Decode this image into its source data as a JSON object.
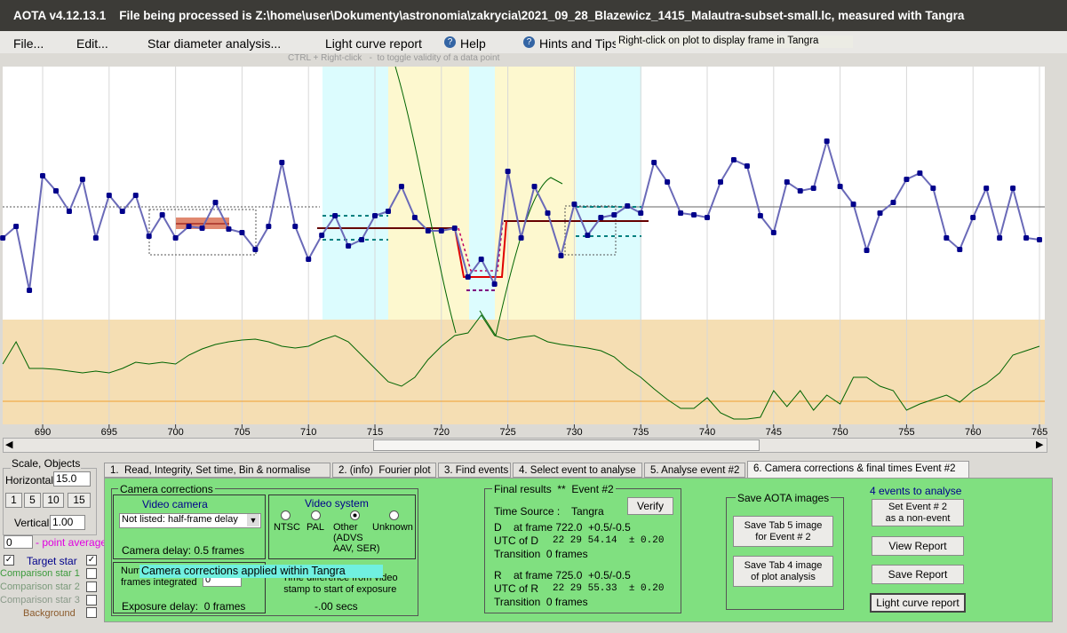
{
  "title_bar": "AOTA v4.12.13.1    File being processed is Z:\\home\\user\\Dokumenty\\astronomia\\zakrycia\\2021_09_28_Blazewicz_1415_Malautra-subset-small.lc, measured with Tangra",
  "menu": [
    "File...",
    "Edit...",
    "Star diameter analysis...",
    "Light curve report",
    "Help",
    "Hints and Tips"
  ],
  "tooltip": "Right-click on plot to display frame in Tangra",
  "plot_hint": "CTRL + Right-click   -  to toggle validity of a data point",
  "chart_data": {
    "type": "line",
    "xlim": [
      686.79,
      765.4
    ],
    "xticks": [
      690,
      695,
      700,
      705,
      710,
      715,
      720,
      725,
      730,
      735,
      740,
      745,
      750,
      755,
      760,
      765
    ],
    "ylim": [
      0,
      285
    ],
    "y2lim": [
      0,
      130
    ],
    "x": [
      687,
      688,
      689,
      690,
      691,
      692,
      693,
      694,
      695,
      696,
      697,
      698,
      699,
      700,
      701,
      702,
      703,
      704,
      705,
      706,
      707,
      708,
      709,
      710,
      711,
      712,
      713,
      714,
      715,
      716,
      717,
      718,
      719,
      720,
      721,
      722,
      723,
      724,
      725,
      726,
      727,
      728,
      729,
      730,
      731,
      732,
      733,
      734,
      735,
      736,
      737,
      738,
      739,
      740,
      741,
      742,
      743,
      744,
      745,
      746,
      747,
      748,
      749,
      750,
      751,
      752,
      753,
      754,
      755,
      756,
      757,
      758,
      759,
      760,
      761,
      762,
      763,
      764,
      765
    ],
    "series": [
      {
        "name": "Target star",
        "color": "#00008b",
        "values": [
          92,
          105,
          33,
          162,
          145,
          122,
          158,
          92,
          140,
          122,
          140,
          94,
          118,
          92,
          105,
          103,
          132,
          102,
          98,
          79,
          105,
          177,
          105,
          68,
          95,
          117,
          83,
          90,
          117,
          122,
          150,
          115,
          100,
          100,
          103,
          48,
          68,
          40,
          167,
          92,
          150,
          120,
          72,
          130,
          95,
          115,
          118,
          128,
          120,
          177,
          155,
          120,
          118,
          115,
          155,
          180,
          173,
          117,
          98,
          155,
          145,
          148,
          201,
          150,
          130,
          78,
          120,
          132,
          158,
          165,
          148,
          92,
          79,
          115,
          148,
          92,
          148,
          92,
          90
        ]
      },
      {
        "name": "Comparison star 1",
        "color": "#006400",
        "axis": "y2",
        "values": [
          80,
          105,
          75,
          75,
          74,
          72,
          70,
          72,
          70,
          75,
          82,
          80,
          82,
          80,
          90,
          97,
          102,
          105,
          107,
          108,
          105,
          100,
          98,
          100,
          107,
          112,
          105,
          90,
          75,
          60,
          55,
          65,
          85,
          100,
          112,
          115,
          135,
          112,
          107,
          110,
          112,
          105,
          102,
          100,
          98,
          95,
          88,
          75,
          65,
          52,
          40,
          30,
          30,
          42,
          25,
          18,
          18,
          20,
          50,
          32,
          50,
          28,
          45,
          35,
          65,
          65,
          55,
          50,
          28,
          35,
          40,
          45,
          37,
          50,
          58,
          70,
          90,
          95,
          100
        ]
      }
    ]
  },
  "left_panel": {
    "title": "Scale, Objects",
    "horizontal_label": "Horizontal",
    "horizontal_value": "15.0",
    "scale_buttons": [
      "1",
      "5",
      "10",
      "15"
    ],
    "vertical_label": "Vertical",
    "vertical_value": "1.00",
    "average_value": "0",
    "average_label": "- point average",
    "other_objects": [
      "Comparison star 2",
      "Comparison star 3",
      "Background"
    ]
  },
  "tabs": [
    "1.  Read, Integrity, Set time, Bin & normalise",
    "2. (info)  Fourier plot",
    "3. Find events",
    "4. Select event to analyse",
    "5. Analyse event #2",
    "6. Camera corrections & final times Event #2"
  ],
  "camera_corrections": {
    "title": "Camera corrections",
    "video_camera": "Video camera",
    "camera_select": "Not listed: half-frame delay",
    "camera_delay": "Camera delay: 0.5 frames",
    "video_system": "Video system",
    "radios": [
      "NTSC",
      "PAL",
      "Other\n(ADVS\nAAV, SER)",
      "Unknown"
    ],
    "frames_integrated": "Number of\nframes integrated",
    "frames_value": "0",
    "tangra_tooltip": "Camera corrections applied within Tangra",
    "time_difference": "Time difference from video\nstamp to start of exposure",
    "time_value": "-.00 secs",
    "exposure_delay": "Exposure delay:  0 frames"
  },
  "final_results": {
    "title": "Final results  **  Event #2",
    "verify": "Verify",
    "time_source_label": "Time Source :",
    "time_source": "Tangra",
    "d_frame": "D    at frame 722.0  +0.5/-0.5",
    "d_utc_label": "UTC of D",
    "d_utc": "22 29 54.14  ± 0.20",
    "d_transition": "Transition  0 frames",
    "r_frame": "R    at frame 725.0  +0.5/-0.5",
    "r_utc_label": "UTC of R",
    "r_utc": "22 29 55.33  ± 0.20",
    "r_transition": "Transition  0 frames"
  },
  "save_images": {
    "title": "Save AOTA images",
    "tab5": "Save Tab 5 image\nfor Event # 2",
    "tab4": "Save Tab 4 image\nof plot analysis"
  },
  "events": {
    "count": "4 events to analyse",
    "non_event": "Set Event # 2\nas a non-event",
    "view_report": "View Report",
    "save_report": "Save Report",
    "light_curve_report": "Light curve report"
  }
}
